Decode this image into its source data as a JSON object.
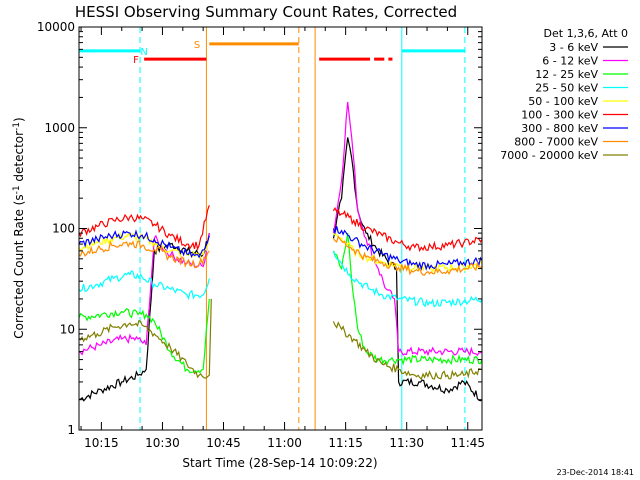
{
  "chart_data": {
    "type": "line",
    "title": "HESSI Observing Summary Count Rates, Corrected",
    "xlabel": "Start Time (28-Sep-14 10:09:22)",
    "ylabel_prefix": "Corrected Count Rate (s",
    "ylabel_sup1": "-1",
    "ylabel_mid": " detector",
    "ylabel_sup2": "-1",
    "ylabel_suffix": ")",
    "yscale": "log",
    "ylim": [
      1,
      10000
    ],
    "xlim_min": [
      9.5,
      108.5
    ],
    "x_ticks": [
      {
        "m": 15,
        "label": "10:15"
      },
      {
        "m": 30,
        "label": "10:30"
      },
      {
        "m": 45,
        "label": "10:45"
      },
      {
        "m": 60,
        "label": "11:00"
      },
      {
        "m": 75,
        "label": "11:15"
      },
      {
        "m": 90,
        "label": "11:30"
      },
      {
        "m": 105,
        "label": "11:45"
      }
    ],
    "y_ticks": [
      {
        "v": 1,
        "label": "1"
      },
      {
        "v": 10,
        "label": "10"
      },
      {
        "v": 100,
        "label": "100"
      },
      {
        "v": 1000,
        "label": "1000"
      },
      {
        "v": 10000,
        "label": "10000"
      }
    ],
    "legend_title": "Det 1,3,6, Att 0",
    "series": [
      {
        "name": "3 - 6 keV",
        "color": "#000000",
        "points": [
          [
            9.5,
            2
          ],
          [
            15,
            2.5
          ],
          [
            20,
            3
          ],
          [
            24,
            3.5
          ],
          [
            26,
            4
          ],
          [
            28,
            60
          ],
          [
            32,
            70
          ],
          [
            36,
            60
          ],
          [
            40,
            55
          ],
          [
            41.5,
            90
          ],
          [
            57,
            null
          ],
          [
            77,
            null
          ],
          [
            72,
            80
          ],
          [
            74,
            200
          ],
          [
            75.5,
            800
          ],
          [
            76.5,
            500
          ],
          [
            78,
            150
          ],
          [
            80,
            90
          ],
          [
            83,
            60
          ],
          [
            86,
            45
          ],
          [
            87.5,
            40
          ],
          [
            88,
            3
          ],
          [
            93,
            3
          ],
          [
            100,
            2.5
          ],
          [
            104,
            3
          ],
          [
            108.5,
            2
          ]
        ]
      },
      {
        "name": "6 - 12 keV",
        "color": "#ff00ff",
        "points": [
          [
            9.5,
            6
          ],
          [
            15,
            7
          ],
          [
            20,
            8
          ],
          [
            24,
            8
          ],
          [
            26,
            7
          ],
          [
            28,
            80
          ],
          [
            32,
            55
          ],
          [
            36,
            45
          ],
          [
            40,
            42
          ],
          [
            41.5,
            90
          ],
          [
            57,
            null
          ],
          [
            72,
            90
          ],
          [
            74,
            300
          ],
          [
            75.5,
            1800
          ],
          [
            76.5,
            800
          ],
          [
            78,
            150
          ],
          [
            80,
            80
          ],
          [
            83,
            40
          ],
          [
            85,
            25
          ],
          [
            87,
            20
          ],
          [
            88,
            6
          ],
          [
            96,
            6
          ],
          [
            104,
            6
          ],
          [
            108.5,
            6
          ]
        ]
      },
      {
        "name": "12 - 25 keV",
        "color": "#00ff00",
        "points": [
          [
            9.5,
            13
          ],
          [
            15,
            14
          ],
          [
            20,
            15
          ],
          [
            24,
            14
          ],
          [
            26,
            14
          ],
          [
            28,
            12
          ],
          [
            32,
            6
          ],
          [
            36,
            4
          ],
          [
            40,
            4
          ],
          [
            41.5,
            20
          ],
          [
            57,
            null
          ],
          [
            72,
            60
          ],
          [
            74,
            40
          ],
          [
            75.5,
            90
          ],
          [
            76.5,
            30
          ],
          [
            78,
            10
          ],
          [
            80,
            6
          ],
          [
            83,
            5
          ],
          [
            86,
            5
          ],
          [
            88,
            5
          ],
          [
            96,
            5
          ],
          [
            104,
            5
          ],
          [
            108.5,
            5
          ]
        ]
      },
      {
        "name": "25 - 50 keV",
        "color": "#00ffff",
        "points": [
          [
            9.5,
            25
          ],
          [
            14,
            28
          ],
          [
            18,
            32
          ],
          [
            22,
            35
          ],
          [
            25,
            33
          ],
          [
            28,
            28
          ],
          [
            32,
            25
          ],
          [
            36,
            22
          ],
          [
            40,
            22
          ],
          [
            41.5,
            32
          ],
          [
            57,
            null
          ],
          [
            72,
            60
          ],
          [
            74,
            45
          ],
          [
            76,
            35
          ],
          [
            78,
            30
          ],
          [
            81,
            25
          ],
          [
            84,
            22
          ],
          [
            88,
            20
          ],
          [
            96,
            18
          ],
          [
            104,
            19
          ],
          [
            108.5,
            20
          ]
        ]
      },
      {
        "name": "50 - 100 keV",
        "color": "#ffff00",
        "points": [
          [
            9.5,
            65
          ],
          [
            14,
            72
          ],
          [
            18,
            80
          ],
          [
            22,
            85
          ],
          [
            25,
            80
          ],
          [
            28,
            72
          ],
          [
            32,
            60
          ],
          [
            36,
            55
          ],
          [
            40,
            55
          ],
          [
            41.5,
            70
          ],
          [
            57,
            null
          ],
          [
            72,
            90
          ],
          [
            74,
            80
          ],
          [
            77,
            60
          ],
          [
            80,
            52
          ],
          [
            84,
            46
          ],
          [
            88,
            43
          ],
          [
            96,
            40
          ],
          [
            104,
            42
          ],
          [
            108.5,
            44
          ]
        ]
      },
      {
        "name": "100 - 300 keV",
        "color": "#ff0000",
        "points": [
          [
            9.5,
            90
          ],
          [
            14,
            105
          ],
          [
            18,
            120
          ],
          [
            22,
            130
          ],
          [
            25,
            125
          ],
          [
            28,
            110
          ],
          [
            32,
            85
          ],
          [
            36,
            70
          ],
          [
            39,
            68
          ],
          [
            41.5,
            170
          ],
          [
            57,
            null
          ],
          [
            72,
            150
          ],
          [
            74,
            140
          ],
          [
            77,
            120
          ],
          [
            80,
            100
          ],
          [
            84,
            85
          ],
          [
            88,
            72
          ],
          [
            92,
            65
          ],
          [
            96,
            66
          ],
          [
            100,
            68
          ],
          [
            104,
            72
          ],
          [
            108.5,
            78
          ]
        ]
      },
      {
        "name": "300 - 800 keV",
        "color": "#0000ff",
        "points": [
          [
            9.5,
            70
          ],
          [
            14,
            78
          ],
          [
            18,
            86
          ],
          [
            22,
            90
          ],
          [
            25,
            86
          ],
          [
            28,
            78
          ],
          [
            32,
            65
          ],
          [
            36,
            56
          ],
          [
            39,
            52
          ],
          [
            41.5,
            85
          ],
          [
            57,
            null
          ],
          [
            72,
            100
          ],
          [
            74,
            95
          ],
          [
            77,
            78
          ],
          [
            80,
            66
          ],
          [
            84,
            56
          ],
          [
            88,
            48
          ],
          [
            92,
            44
          ],
          [
            96,
            43
          ],
          [
            100,
            44
          ],
          [
            104,
            46
          ],
          [
            108.5,
            48
          ]
        ]
      },
      {
        "name": "800 - 7000 keV",
        "color": "#ff8c00",
        "points": [
          [
            9.5,
            55
          ],
          [
            14,
            62
          ],
          [
            18,
            68
          ],
          [
            22,
            72
          ],
          [
            25,
            68
          ],
          [
            28,
            62
          ],
          [
            32,
            52
          ],
          [
            36,
            46
          ],
          [
            39,
            44
          ],
          [
            41.5,
            60
          ],
          [
            57,
            null
          ],
          [
            72,
            80
          ],
          [
            74,
            75
          ],
          [
            77,
            62
          ],
          [
            80,
            52
          ],
          [
            84,
            46
          ],
          [
            88,
            41
          ],
          [
            92,
            38
          ],
          [
            96,
            37
          ],
          [
            100,
            38
          ],
          [
            104,
            40
          ],
          [
            108.5,
            42
          ]
        ]
      },
      {
        "name": "7000 - 20000 keV",
        "color": "#808000",
        "points": [
          [
            9.5,
            8
          ],
          [
            14,
            9
          ],
          [
            18,
            10.5
          ],
          [
            22,
            11.5
          ],
          [
            25,
            11
          ],
          [
            28,
            9
          ],
          [
            32,
            6.5
          ],
          [
            36,
            4.5
          ],
          [
            39,
            3.5
          ],
          [
            41.5,
            3.5
          ],
          [
            42,
            20
          ],
          [
            57,
            null
          ],
          [
            72,
            12
          ],
          [
            74,
            10
          ],
          [
            77,
            8
          ],
          [
            80,
            6
          ],
          [
            84,
            4.5
          ],
          [
            88,
            4
          ],
          [
            92,
            3.5
          ],
          [
            96,
            3.5
          ],
          [
            100,
            3.5
          ],
          [
            104,
            3.5
          ],
          [
            108.5,
            4
          ]
        ]
      }
    ],
    "vlines": [
      {
        "m": 9.5,
        "color": "#00ffff",
        "style": "solid"
      },
      {
        "m": 24.5,
        "color": "#00ffff",
        "style": "dashed"
      },
      {
        "m": 40.8,
        "color": "#ff8c00",
        "style": "solid"
      },
      {
        "m": 63.5,
        "color": "#ff8c00",
        "style": "dashed"
      },
      {
        "m": 67.5,
        "color": "#ff8c00",
        "style": "solid"
      },
      {
        "m": 88.8,
        "color": "#00ffff",
        "style": "solid"
      },
      {
        "m": 104.3,
        "color": "#00ffff",
        "style": "dashed"
      }
    ],
    "flag_bars": [
      {
        "label": "N",
        "color": "#00ffff",
        "y": 5800,
        "segments": [
          [
            9.5,
            24.5
          ],
          [
            88.8,
            104.3
          ]
        ],
        "label_at": 25.5
      },
      {
        "label": "F",
        "color": "#ff0000",
        "y": 4800,
        "segments": [
          [
            25.5,
            40.8
          ],
          [
            68.5,
            81
          ],
          [
            82,
            84.5
          ],
          [
            85.5,
            86.5
          ]
        ],
        "label_at": 23.5
      },
      {
        "label": "S",
        "color": "#ff8c00",
        "y": 6800,
        "segments": [
          [
            41.5,
            63.5
          ]
        ],
        "label_at": 38.5
      }
    ],
    "timestamp": "23-Dec-2014 18:41"
  }
}
